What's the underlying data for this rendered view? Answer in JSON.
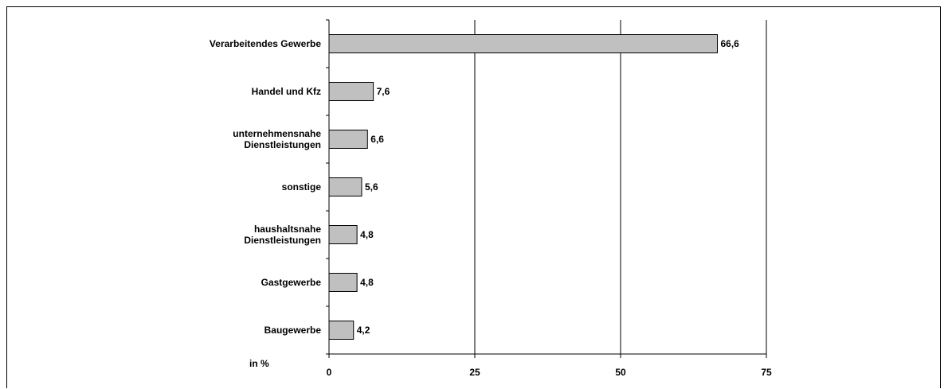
{
  "chart_data": {
    "type": "bar",
    "orientation": "horizontal",
    "categories": [
      "Verarbeitendes Gewerbe",
      "Handel und Kfz",
      "unternehmensnahe Dienstleistungen",
      "sonstige",
      "haushaltsnahe Dienstleistungen",
      "Gastgewerbe",
      "Baugewerbe"
    ],
    "category_lines": [
      [
        "Verarbeitendes Gewerbe"
      ],
      [
        "Handel und Kfz"
      ],
      [
        "unternehmensnahe",
        "Dienstleistungen"
      ],
      [
        "sonstige"
      ],
      [
        "haushaltsnahe",
        "Dienstleistungen"
      ],
      [
        "Gastgewerbe"
      ],
      [
        "Baugewerbe"
      ]
    ],
    "values": [
      66.6,
      7.6,
      6.6,
      5.6,
      4.8,
      4.8,
      4.2
    ],
    "value_labels": [
      "66,6",
      "7,6",
      "6,6",
      "5,6",
      "4,8",
      "4,8",
      "4,2"
    ],
    "xlim": [
      0,
      75
    ],
    "xticks": [
      0,
      25,
      50,
      75
    ],
    "xtick_labels": [
      "0",
      "25",
      "50",
      "75"
    ],
    "unit_label": "in %",
    "grid": "vertical",
    "bar_color": "#c0c0c0",
    "bar_border_color": "#000000"
  }
}
